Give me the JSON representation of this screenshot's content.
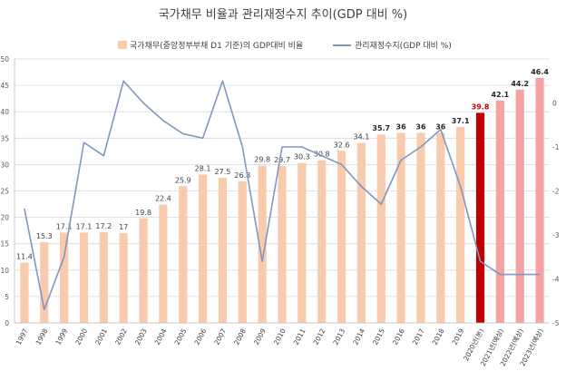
{
  "chart_data": {
    "type": "bar",
    "title": "국가채무 비율과 관리재정수지 추이(GDP 대비 %)",
    "legend_position": "top",
    "categories": [
      "1997",
      "1998",
      "1999",
      "2000",
      "2001",
      "2002",
      "2003",
      "2004",
      "2005",
      "2006",
      "2007",
      "2008",
      "2009",
      "2010",
      "2011",
      "2012",
      "2013",
      "2014",
      "2015",
      "2016",
      "2017",
      "2018",
      "2019",
      "2020년(본)",
      "2021년(예상)",
      "2022년(예상)",
      "2023년(예상)"
    ],
    "bar_labels": [
      "11.4",
      "15.3",
      "17.1",
      "17.1",
      "17.2",
      "17",
      "19.8",
      "22.4",
      "25.9",
      "28.1",
      "27.5",
      "26.8",
      "29.8",
      "29.7",
      "30.3",
      "30.8",
      "32.6",
      "34.1",
      "35.7",
      "36",
      "36",
      "36",
      "37.1",
      "39.8",
      "42.1",
      "44.2",
      "46.4"
    ],
    "series": [
      {
        "name": "국가채무(중앙정부부채 D1 기준)의 GDP대비 비율",
        "axis": "left",
        "kind": "bar",
        "values": [
          11.4,
          15.3,
          17.1,
          17.1,
          17.2,
          17,
          19.8,
          22.4,
          25.9,
          28.1,
          27.5,
          26.8,
          29.8,
          29.7,
          30.3,
          30.8,
          32.6,
          34.1,
          35.7,
          36,
          36,
          36,
          37.1,
          39.8,
          42.1,
          44.2,
          46.4
        ],
        "colors": {
          "actual": "#f8cbad",
          "current": "#c00000",
          "projected": "#f4a2a2"
        }
      },
      {
        "name": "관리재정수지(GDP 대비 %)",
        "axis": "right",
        "kind": "line",
        "color": "#7f97c1",
        "values": [
          -2.4,
          -4.7,
          -3.5,
          -0.9,
          -1.2,
          0.5,
          0,
          -0.4,
          -0.7,
          -0.8,
          0.5,
          -1.0,
          -3.6,
          -1.0,
          -1.0,
          -1.2,
          -1.4,
          -1.9,
          -2.3,
          -1.3,
          -1.0,
          -0.6,
          -1.9,
          -3.6,
          -3.9,
          -3.9,
          -3.9
        ]
      }
    ],
    "y_left": {
      "min": 0,
      "max": 50,
      "step": 5,
      "ticks": [
        "0",
        "5",
        "10",
        "15",
        "20",
        "25",
        "30",
        "35",
        "40",
        "45",
        "50"
      ]
    },
    "y_right": {
      "min": -5,
      "max": 1,
      "step": 1,
      "ticks": [
        "-5",
        "-4",
        "-3",
        "-2",
        "-1",
        "0"
      ]
    },
    "grid": true,
    "label_styles": {
      "emphasized_from_index": 18,
      "red_index": 23
    }
  }
}
